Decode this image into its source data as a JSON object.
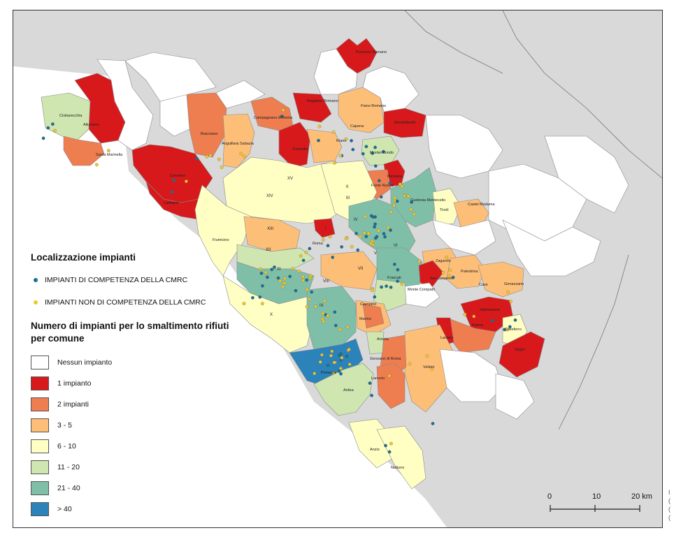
{
  "colors": {
    "none": "#ffffff",
    "one": "#d7191c",
    "two": "#ee7d4f",
    "three_five": "#fdbf78",
    "six_ten": "#ffffc4",
    "eleven_twenty": "#cfe6b0",
    "twentyone_forty": "#7fbfa8",
    "over_forty": "#2b83ba",
    "sea": "#ffffff",
    "land_outside": "#d9d9d9",
    "dot_cmrc": "#1a6e96",
    "dot_non_cmrc": "#f3c629"
  },
  "legend": {
    "title_plants": "Localizzazione impianti",
    "plants": [
      {
        "label": "IMPIANTI DI COMPETENZA DELLA CMRC",
        "color_key": "dot_cmrc"
      },
      {
        "label": "IMPIANTI NON DI COMPETENZA DELLA CMRC",
        "color_key": "dot_non_cmrc"
      }
    ],
    "title_classes_line1": "Numero di impianti per lo smaltimento rifiuti",
    "title_classes_line2": "per comune",
    "classes": [
      {
        "label": "Nessun impianto",
        "color_key": "none"
      },
      {
        "label": "1 impianto",
        "color_key": "one"
      },
      {
        "label": "2 impianti",
        "color_key": "two"
      },
      {
        "label": "3 - 5",
        "color_key": "three_five"
      },
      {
        "label": "6 - 10",
        "color_key": "six_ten"
      },
      {
        "label": "11 - 20",
        "color_key": "eleven_twenty"
      },
      {
        "label": "21 - 40",
        "color_key": "twentyone_forty"
      },
      {
        "label": "> 40",
        "color_key": "over_forty"
      }
    ]
  },
  "scale_bar": {
    "labels": [
      "0",
      "10",
      "20 km"
    ]
  },
  "municipalities": [
    "Civitavecchia",
    "Allumiere",
    "Santa Marinella",
    "Cerveteri",
    "Ladispoli",
    "Bracciano",
    "Anguillara Sabazia",
    "Campagnano di Roma",
    "Magliano Romano",
    "Formello",
    "Riano",
    "Capena",
    "Fiano Romano",
    "Ponzano Romano",
    "Montelibretti",
    "Monterotondo",
    "Mentana",
    "Fonte Nuova",
    "Guidonia Montecelio",
    "Tivoli",
    "Castel Madama",
    "Fiumicino",
    "Roma",
    "Zagarolo",
    "San Cesareo",
    "Palestrina",
    "Cave",
    "Genazzano",
    "Valmontone",
    "Monte Compatri",
    "Frascati",
    "Ciampino",
    "Marino",
    "Artena",
    "Colleferro",
    "Lariano",
    "Segni",
    "Ariccia",
    "Genzano di Roma",
    "Lanuvio",
    "Velletri",
    "Pomezia",
    "Ardea",
    "Anzio",
    "Nettuno"
  ],
  "districts": [
    "XV",
    "II",
    "XIV",
    "XIII",
    "XII",
    "XI",
    "X",
    "IX",
    "VIII",
    "VII",
    "VI",
    "V",
    "IV",
    "III",
    "I"
  ],
  "side_glyphs": [
    "I",
    "(",
    "(",
    "("
  ]
}
